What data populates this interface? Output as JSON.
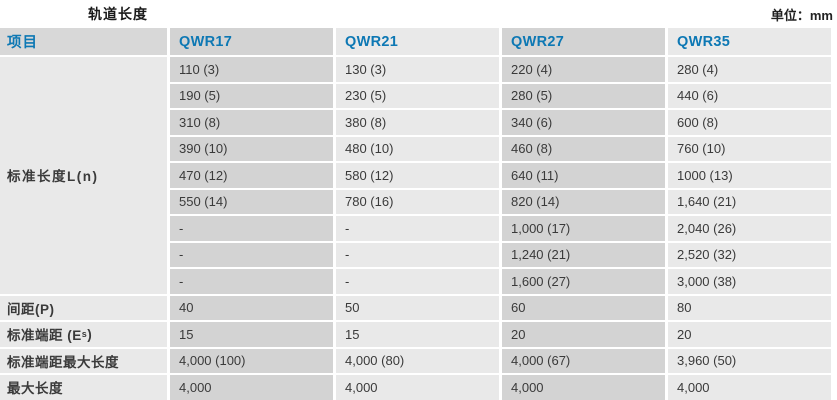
{
  "page": {
    "title": "轨道长度",
    "unit_label": "单位：mm"
  },
  "colors": {
    "accent_blue": "#0d78b4",
    "header_bg": "#d8d8d8",
    "col_dark_bg": "#d3d3d3",
    "col_light_bg": "#e9e9e9",
    "label_bg": "#e9e9e9",
    "text": "#3a3a3a"
  },
  "table": {
    "columns": [
      "项目",
      "QWR17",
      "QWR21",
      "QWR27",
      "QWR35"
    ],
    "standard_length": {
      "label": "标准长度L(n)",
      "rows": [
        [
          "110 (3)",
          "130 (3)",
          "220 (4)",
          "280 (4)"
        ],
        [
          "190 (5)",
          "230 (5)",
          "280 (5)",
          "440 (6)"
        ],
        [
          "310 (8)",
          "380 (8)",
          "340 (6)",
          "600 (8)"
        ],
        [
          "390 (10)",
          "480 (10)",
          "460 (8)",
          "760 (10)"
        ],
        [
          "470 (12)",
          "580 (12)",
          "640 (11)",
          "1000 (13)"
        ],
        [
          "550 (14)",
          "780 (16)",
          "820 (14)",
          "1,640 (21)"
        ],
        [
          "-",
          "-",
          "1,000 (17)",
          "2,040 (26)"
        ],
        [
          "-",
          "-",
          "1,240 (21)",
          "2,520 (32)"
        ],
        [
          "-",
          "-",
          "1,600 (27)",
          "3,000 (38)"
        ]
      ]
    },
    "simple_rows": [
      {
        "label": "间距(P)",
        "values": [
          "40",
          "50",
          "60",
          "80"
        ]
      },
      {
        "label_pre": "标准端距 (E",
        "label_sub": "s",
        "label_post": ")",
        "values": [
          "15",
          "15",
          "20",
          "20"
        ]
      },
      {
        "label": "标准端距最大长度",
        "values": [
          "4,000 (100)",
          "4,000 (80)",
          "4,000 (67)",
          "3,960 (50)"
        ]
      },
      {
        "label": "最大长度",
        "values": [
          "4,000",
          "4,000",
          "4,000",
          "4,000"
        ]
      }
    ]
  }
}
